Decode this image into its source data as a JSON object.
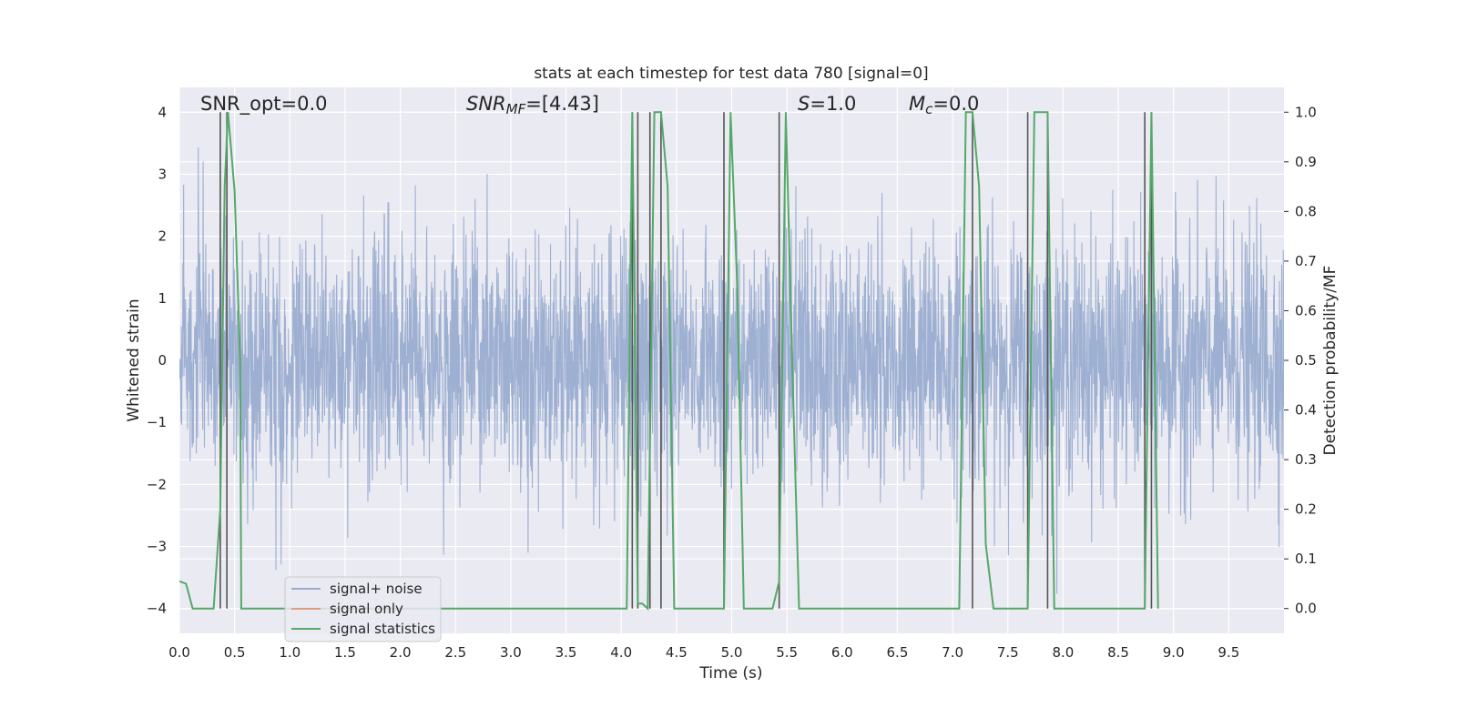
{
  "chart_data": {
    "type": "line",
    "title": "stats at each timestep for test data 780 [signal=0]",
    "xlabel": "Time (s)",
    "ylabel": "Whitened strain",
    "ylabel_right": "Detection probability/MF",
    "xlim": [
      0,
      10
    ],
    "ylim": [
      -4.4,
      4.4
    ],
    "ylim_right": [
      -0.05,
      1.05
    ],
    "x_ticks": [
      "0.0",
      "0.5",
      "1.0",
      "1.5",
      "2.0",
      "2.5",
      "3.0",
      "3.5",
      "4.0",
      "4.5",
      "5.0",
      "5.5",
      "6.0",
      "6.5",
      "7.0",
      "7.5",
      "8.0",
      "8.5",
      "9.0",
      "9.5"
    ],
    "y_ticks": [
      "4",
      "3",
      "2",
      "1",
      "0",
      "−1",
      "−2",
      "−3",
      "−4"
    ],
    "y_ticks_values": [
      4,
      3,
      2,
      1,
      0,
      -1,
      -2,
      -3,
      -4
    ],
    "y_right_ticks": [
      "1.0",
      "0.9",
      "0.8",
      "0.7",
      "0.6",
      "0.5",
      "0.4",
      "0.3",
      "0.2",
      "0.1",
      "0.0"
    ],
    "y_right_ticks_values": [
      1.0,
      0.9,
      0.8,
      0.7,
      0.6,
      0.5,
      0.4,
      0.3,
      0.2,
      0.1,
      0.0
    ],
    "grid": true,
    "legend_position": "lower-left",
    "annotations": {
      "snr_opt": "SNR_opt=0.0",
      "snr_mf_main": "SNR",
      "snr_mf_sub": "MF",
      "snr_mf_value": "=[4.43]",
      "s_main": "S",
      "s_value": "=1.0",
      "mc_main": "M",
      "mc_sub": "c",
      "mc_value": "=0.0"
    },
    "series": [
      {
        "name": "signal+ noise",
        "color": "#9aadd0",
        "axis": "left",
        "kind": "noise",
        "t_start": 0,
        "t_end": 10,
        "sigma": 1.0
      },
      {
        "name": "signal only",
        "color": "#dd9f7e",
        "axis": "left",
        "kind": "line",
        "x": [],
        "y": []
      },
      {
        "name": "signal statistics",
        "color": "#55a868",
        "axis": "right",
        "kind": "line",
        "x": [
          0.0,
          0.06,
          0.12,
          0.31,
          0.37,
          0.41,
          0.44,
          0.5,
          0.55,
          0.56,
          4.05,
          4.1,
          4.15,
          4.19,
          4.24,
          4.3,
          4.36,
          4.42,
          4.48,
          4.93,
          4.99,
          5.05,
          5.11,
          5.37,
          5.43,
          5.49,
          5.55,
          5.61,
          7.06,
          7.12,
          7.18,
          7.24,
          7.3,
          7.37,
          7.68,
          7.74,
          7.8,
          7.86,
          7.92,
          8.74,
          8.8,
          8.86
        ],
        "y": [
          0.055,
          0.05,
          0.0,
          0.0,
          0.2,
          0.85,
          1.0,
          0.84,
          0.5,
          0.0,
          0.0,
          1.0,
          0.01,
          0.01,
          0.0,
          1.0,
          1.0,
          0.85,
          0.0,
          0.0,
          1.0,
          0.65,
          0.0,
          0.0,
          0.055,
          1.0,
          0.48,
          0.0,
          0.0,
          1.0,
          1.0,
          0.85,
          0.13,
          0.0,
          0.0,
          1.0,
          1.0,
          1.0,
          0.0,
          0.0,
          1.0,
          0.0
        ]
      }
    ],
    "vertical_lines": {
      "color": "#555555",
      "x": [
        0.37,
        0.43,
        4.1,
        4.15,
        4.26,
        4.36,
        4.93,
        5.43,
        7.18,
        7.68,
        7.86,
        8.74,
        8.8
      ]
    }
  }
}
